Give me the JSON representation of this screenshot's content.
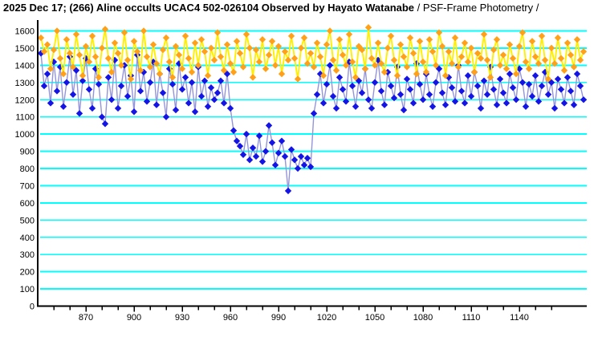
{
  "title": {
    "bold": "2025 Dec 17; (266) Aline occults UCAC4 502-026104 Observed by Hayato Watanabe ",
    "regular": "/ PSF-Frame Photometry /"
  },
  "chart_data": {
    "type": "line-scatter",
    "title": "2025 Dec 17; (266) Aline occults UCAC4 502-026104 Observed by Hayato Watanabe / PSF-Frame Photometry /",
    "xlabel": "",
    "ylabel": "",
    "xlim": [
      840,
      1182
    ],
    "ylim": [
      0,
      1654
    ],
    "background_color": "#ffffff",
    "grid_color": "#00ffff",
    "axis_color": "#000000",
    "grid": "horizontal-only",
    "legend": "none",
    "y_ticks": [
      0,
      100,
      200,
      300,
      400,
      500,
      600,
      700,
      800,
      900,
      1000,
      1100,
      1200,
      1300,
      1400,
      1500,
      1600
    ],
    "x_tick_labels": [
      870,
      900,
      930,
      960,
      990,
      1020,
      1050,
      1080,
      1110,
      1140
    ],
    "x_minor_tick_step": 10,
    "x_minor_tick_range": [
      850,
      1160
    ],
    "x_start": 842,
    "x_step": 2,
    "series": [
      {
        "id": "blue-target-star",
        "marker": "diamond",
        "marker_color": "#1414e6",
        "line_color": "#9494dc",
        "values": [
          1470,
          1280,
          1350,
          1180,
          1420,
          1250,
          1390,
          1160,
          1300,
          1450,
          1230,
          1370,
          1120,
          1310,
          1440,
          1260,
          1150,
          1380,
          1290,
          1100,
          1060,
          1330,
          1200,
          1430,
          1150,
          1280,
          1400,
          1220,
          1340,
          1130,
          1460,
          1250,
          1360,
          1190,
          1300,
          1420,
          1170,
          1350,
          1240,
          1100,
          1380,
          1290,
          1140,
          1410,
          1260,
          1330,
          1180,
          1300,
          1130,
          1390,
          1220,
          1310,
          1160,
          1270,
          1200,
          1240,
          1310,
          1180,
          1350,
          1150,
          1020,
          960,
          930,
          880,
          1000,
          850,
          920,
          870,
          990,
          840,
          900,
          1050,
          950,
          820,
          890,
          960,
          870,
          670,
          910,
          850,
          800,
          870,
          820,
          860,
          810,
          1120,
          1230,
          1350,
          1180,
          1290,
          1400,
          1220,
          1150,
          1330,
          1260,
          1190,
          1420,
          1280,
          1160,
          1310,
          1240,
          1380,
          1200,
          1150,
          1300,
          1430,
          1250,
          1170,
          1360,
          1280,
          1210,
          1390,
          1230,
          1140,
          1320,
          1260,
          1180,
          1410,
          1290,
          1200,
          1350,
          1230,
          1160,
          1300,
          1380,
          1240,
          1170,
          1330,
          1270,
          1190,
          1400,
          1250,
          1180,
          1340,
          1220,
          1360,
          1280,
          1150,
          1310,
          1230,
          1390,
          1260,
          1170,
          1320,
          1240,
          1180,
          1350,
          1270,
          1200,
          1380,
          1300,
          1160,
          1290,
          1220,
          1340,
          1190,
          1280,
          1360,
          1230,
          1300,
          1150,
          1320,
          1260,
          1180,
          1330,
          1250,
          1170,
          1350,
          1280,
          1200
        ]
      },
      {
        "id": "orange-comparison-star",
        "marker": "diamond",
        "marker_color": "#ffa018",
        "line_color": "#fff000",
        "values": [
          1560,
          1480,
          1520,
          1380,
          1490,
          1600,
          1440,
          1350,
          1550,
          1470,
          1390,
          1580,
          1460,
          1340,
          1510,
          1420,
          1570,
          1450,
          1330,
          1500,
          1610,
          1440,
          1360,
          1530,
          1470,
          1400,
          1590,
          1430,
          1320,
          1540,
          1480,
          1370,
          1600,
          1450,
          1390,
          1520,
          1410,
          1350,
          1490,
          1560,
          1420,
          1330,
          1510,
          1460,
          1380,
          1570,
          1440,
          1360,
          1530,
          1400,
          1550,
          1480,
          1340,
          1500,
          1430,
          1590,
          1450,
          1370,
          1520,
          1410,
          1360,
          1540,
          1470,
          1390,
          1580,
          1500,
          1330,
          1490,
          1420,
          1550,
          1380,
          1460,
          1540,
          1400,
          1510,
          1350,
          1480,
          1430,
          1570,
          1440,
          1320,
          1500,
          1560,
          1410,
          1470,
          1390,
          1530,
          1450,
          1340,
          1520,
          1600,
          1430,
          1370,
          1550,
          1460,
          1400,
          1580,
          1420,
          1330,
          1510,
          1490,
          1380,
          1620,
          1440,
          1400,
          1530,
          1410,
          1360,
          1500,
          1570,
          1430,
          1340,
          1520,
          1450,
          1390,
          1560,
          1470,
          1350,
          1540,
          1420,
          1360,
          1550,
          1480,
          1400,
          1590,
          1510,
          1340,
          1480,
          1410,
          1560,
          1390,
          1450,
          1530,
          1420,
          1500,
          1360,
          1470,
          1440,
          1580,
          1430,
          1330,
          1490,
          1550,
          1400,
          1460,
          1380,
          1520,
          1440,
          1350,
          1510,
          1590,
          1420,
          1380,
          1540,
          1450,
          1410,
          1570,
          1430,
          1320,
          1500,
          1410,
          1560,
          1440,
          1370,
          1530,
          1460,
          1390,
          1550,
          1430,
          1480
        ]
      }
    ]
  }
}
